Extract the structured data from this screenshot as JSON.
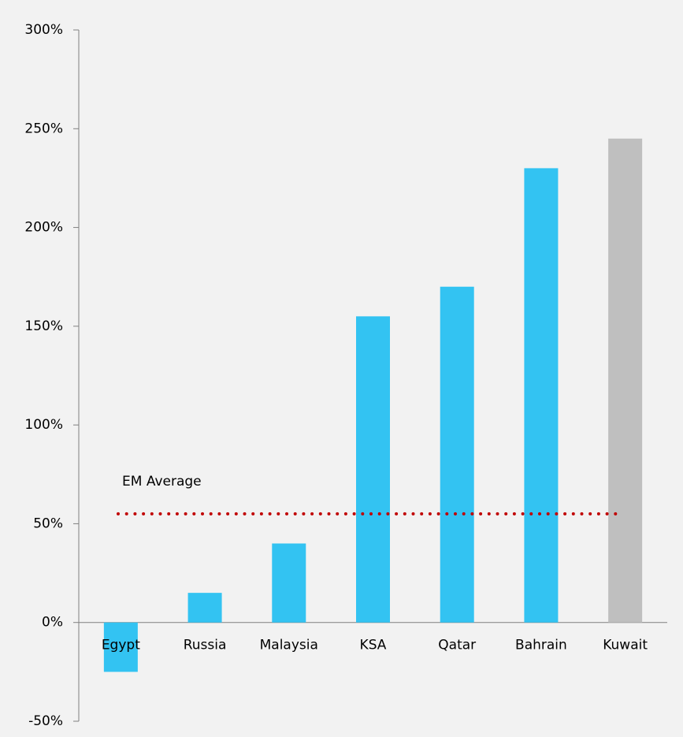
{
  "chart_data": {
    "type": "bar",
    "categories": [
      "Egypt",
      "Russia",
      "Malaysia",
      "KSA",
      "Qatar",
      "Bahrain",
      "Kuwait"
    ],
    "values": [
      -25,
      15,
      40,
      155,
      170,
      230,
      245
    ],
    "colors": [
      "#33c3f2",
      "#33c3f2",
      "#33c3f2",
      "#33c3f2",
      "#33c3f2",
      "#33c3f2",
      "#bfbfbf"
    ],
    "ylim": [
      -50,
      300
    ],
    "yticks": [
      {
        "value": -50,
        "label": "-50%"
      },
      {
        "value": 0,
        "label": "0%"
      },
      {
        "value": 50,
        "label": "50%"
      },
      {
        "value": 100,
        "label": "100%"
      },
      {
        "value": 150,
        "label": "150%"
      },
      {
        "value": 200,
        "label": "200%"
      },
      {
        "value": 250,
        "label": "250%"
      },
      {
        "value": 300,
        "label": "300%"
      }
    ],
    "grid": false,
    "reference_line": {
      "label": "EM Average",
      "value": 55,
      "color": "#c00000"
    }
  }
}
